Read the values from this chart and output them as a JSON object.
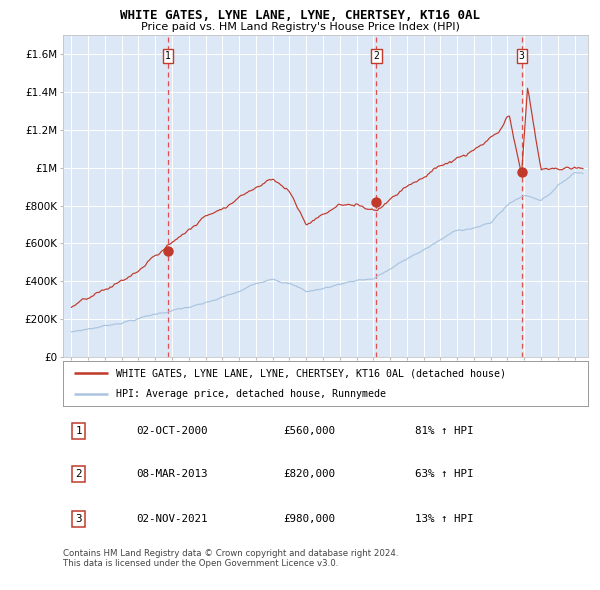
{
  "title": "WHITE GATES, LYNE LANE, LYNE, CHERTSEY, KT16 0AL",
  "subtitle": "Price paid vs. HM Land Registry's House Price Index (HPI)",
  "legend_line1": "WHITE GATES, LYNE LANE, LYNE, CHERTSEY, KT16 0AL (detached house)",
  "legend_line2": "HPI: Average price, detached house, Runnymede",
  "sale_dates_decimal": [
    2000.75,
    2013.19,
    2021.84
  ],
  "dot_prices": [
    560000,
    820000,
    980000
  ],
  "table_rows": [
    {
      "num": "1",
      "date": "02-OCT-2000",
      "price": "£560,000",
      "pct": "81% ↑ HPI"
    },
    {
      "num": "2",
      "date": "08-MAR-2013",
      "price": "£820,000",
      "pct": "63% ↑ HPI"
    },
    {
      "num": "3",
      "date": "02-NOV-2021",
      "price": "£980,000",
      "pct": "13% ↑ HPI"
    }
  ],
  "footnote": "Contains HM Land Registry data © Crown copyright and database right 2024.\nThis data is licensed under the Open Government Licence v3.0.",
  "hpi_color": "#aac4e0",
  "price_color": "#c0392b",
  "dot_color": "#c0392b",
  "bg_color": "#dce8f5",
  "grid_color": "#ffffff",
  "vline_color_dashed": "#e05050",
  "ylim": [
    0,
    1700000
  ],
  "xlim_start": 1994.5,
  "xlim_end": 2025.8,
  "yticks": [
    0,
    200000,
    400000,
    600000,
    800000,
    1000000,
    1200000,
    1400000,
    1600000
  ],
  "ytick_labels": [
    "£0",
    "£200K",
    "£400K",
    "£600K",
    "£800K",
    "£1M",
    "£1.2M",
    "£1.4M",
    "£1.6M"
  ],
  "hpi_keypoints_t": [
    1995,
    1997,
    1999,
    2001,
    2003,
    2005,
    2007,
    2008,
    2009,
    2010,
    2012,
    2013,
    2015,
    2017,
    2018,
    2020,
    2021,
    2022,
    2023,
    2025
  ],
  "hpi_keypoints_v": [
    130000,
    165000,
    210000,
    255000,
    285000,
    340000,
    420000,
    400000,
    355000,
    370000,
    420000,
    430000,
    530000,
    630000,
    680000,
    720000,
    820000,
    870000,
    850000,
    1000000
  ],
  "prop_keypoints_t": [
    1995,
    1997,
    1999,
    2000.75,
    2003,
    2007,
    2008,
    2009,
    2011,
    2013.19,
    2015,
    2017,
    2019,
    2020.5,
    2021.1,
    2021.84,
    2022.2,
    2023,
    2025
  ],
  "prop_keypoints_v": [
    265000,
    330000,
    430000,
    560000,
    720000,
    970000,
    900000,
    730000,
    840000,
    820000,
    970000,
    1080000,
    1150000,
    1230000,
    1310000,
    980000,
    1450000,
    1010000,
    1020000
  ]
}
